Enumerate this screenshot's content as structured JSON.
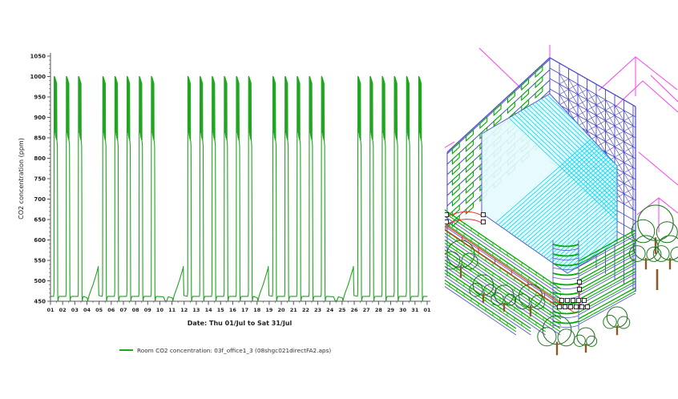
{
  "chart": {
    "y_axis_title": "CO2 concentration (ppm)",
    "x_axis_title": "Date: Thu 01/Jul to Sat 31/Jul",
    "legend": {
      "swatch_color": "#1FA51F",
      "label": "Room CO2 concentration: 03f_office1_3 (08shgc021directFA2.aps)"
    }
  },
  "chart_data": {
    "type": "line",
    "title": "",
    "xlabel": "Date: Thu 01/Jul to Sat 31/Jul",
    "ylabel": "CO2 concentration (ppm)",
    "ylim": [
      450,
      1050
    ],
    "ytick_interval": 50,
    "ytick_minor_interval": 10,
    "yticks": [
      1050,
      1000,
      950,
      900,
      850,
      800,
      750,
      700,
      650,
      600,
      550,
      500,
      450
    ],
    "xtick_labels": [
      "01",
      "02",
      "03",
      "04",
      "05",
      "06",
      "07",
      "08",
      "09",
      "10",
      "11",
      "12",
      "13",
      "14",
      "15",
      "16",
      "17",
      "18",
      "19",
      "20",
      "21",
      "22",
      "23",
      "24",
      "25",
      "26",
      "27",
      "28",
      "29",
      "30",
      "31",
      "01"
    ],
    "x_range_days": [
      1,
      32
    ],
    "grid": false,
    "legend_position": "bottom",
    "series": [
      {
        "name": "Room CO2 concentration: 03f_office1_3 (08shgc021directFA2.aps)",
        "color": "#1FA51F",
        "units": "ppm",
        "night_baseline": 462,
        "occupied_morning_peak": 1000,
        "occupied_daytime_band": [
          845,
          1000
        ],
        "occupied_afternoon_shoulder": 830,
        "evening_min": 450,
        "sunday_ramp_peak": 535,
        "saturday_off_low": 450,
        "occupied_days": [
          1,
          2,
          3,
          5,
          6,
          7,
          8,
          9,
          12,
          13,
          14,
          15,
          16,
          17,
          19,
          20,
          21,
          22,
          23,
          26,
          27,
          28,
          29,
          30,
          31
        ],
        "ramp_days": [
          4,
          11,
          18,
          25
        ],
        "low_days": [
          10,
          24
        ]
      }
    ]
  },
  "model_view": {
    "colors": {
      "context_magenta": "#FF3DF0",
      "frame_blue": "#4444CA",
      "slab_blue": "#5A55CC",
      "glazing_cyan": "#00D9F0",
      "glazing_fill": "#E4FBFF",
      "facade_green": "#00AE00",
      "route_red": "#E83023",
      "tree_green": "#217A21",
      "trunk_brown": "#8A5A2B",
      "marker_fill": "#FFFFFF",
      "marker_border": "#111111"
    }
  }
}
